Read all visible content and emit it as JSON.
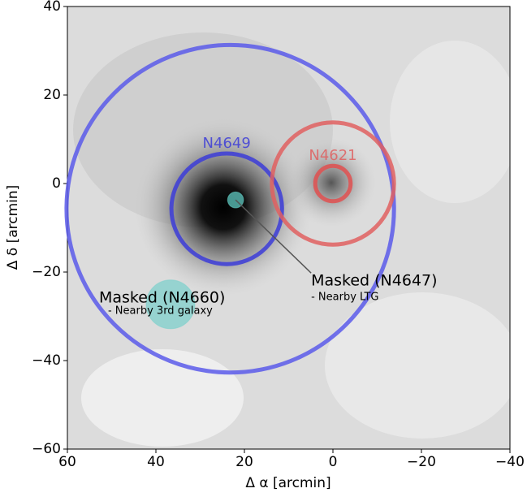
{
  "chart_data": {
    "type": "image",
    "xlabel": "Δ α [arcmin]",
    "ylabel": "Δ δ [arcmin]",
    "xlim": [
      60,
      -40
    ],
    "ylim": [
      -60,
      40
    ],
    "xticks": [
      60,
      40,
      20,
      0,
      {
        "value": -20,
        "label": "−20"
      },
      {
        "value": -40,
        "label": "−40"
      }
    ],
    "yticks": [
      {
        "value": -60,
        "label": "−60"
      },
      {
        "value": -40,
        "label": "−40"
      },
      {
        "value": -20,
        "label": "−20"
      },
      0,
      20,
      40
    ],
    "circles": [
      {
        "x": 23.2,
        "y": -5.7,
        "r": 37,
        "color": "#5b5bea"
      },
      {
        "x": 24,
        "y": -5.7,
        "r": 12.5,
        "color": "#3c3cd8",
        "label": "N4649"
      },
      {
        "x": 0,
        "y": 0,
        "r": 13.8,
        "color": "#e06060",
        "label": "N4621"
      },
      {
        "x": 0,
        "y": 0,
        "r": 4,
        "color": "#e05050"
      },
      {
        "x": 22,
        "y": -3.7,
        "r": 1.8,
        "color": "#5fc8c0",
        "filled": true,
        "label": "Masked (N4647)",
        "note": "- Nearby LTG"
      },
      {
        "x": 36.7,
        "y": -27.3,
        "r": 5.5,
        "color": "#7fd0cc",
        "filled": true,
        "label": "Masked (N4660)",
        "note": "- Nearby 3rd galaxy"
      }
    ]
  }
}
